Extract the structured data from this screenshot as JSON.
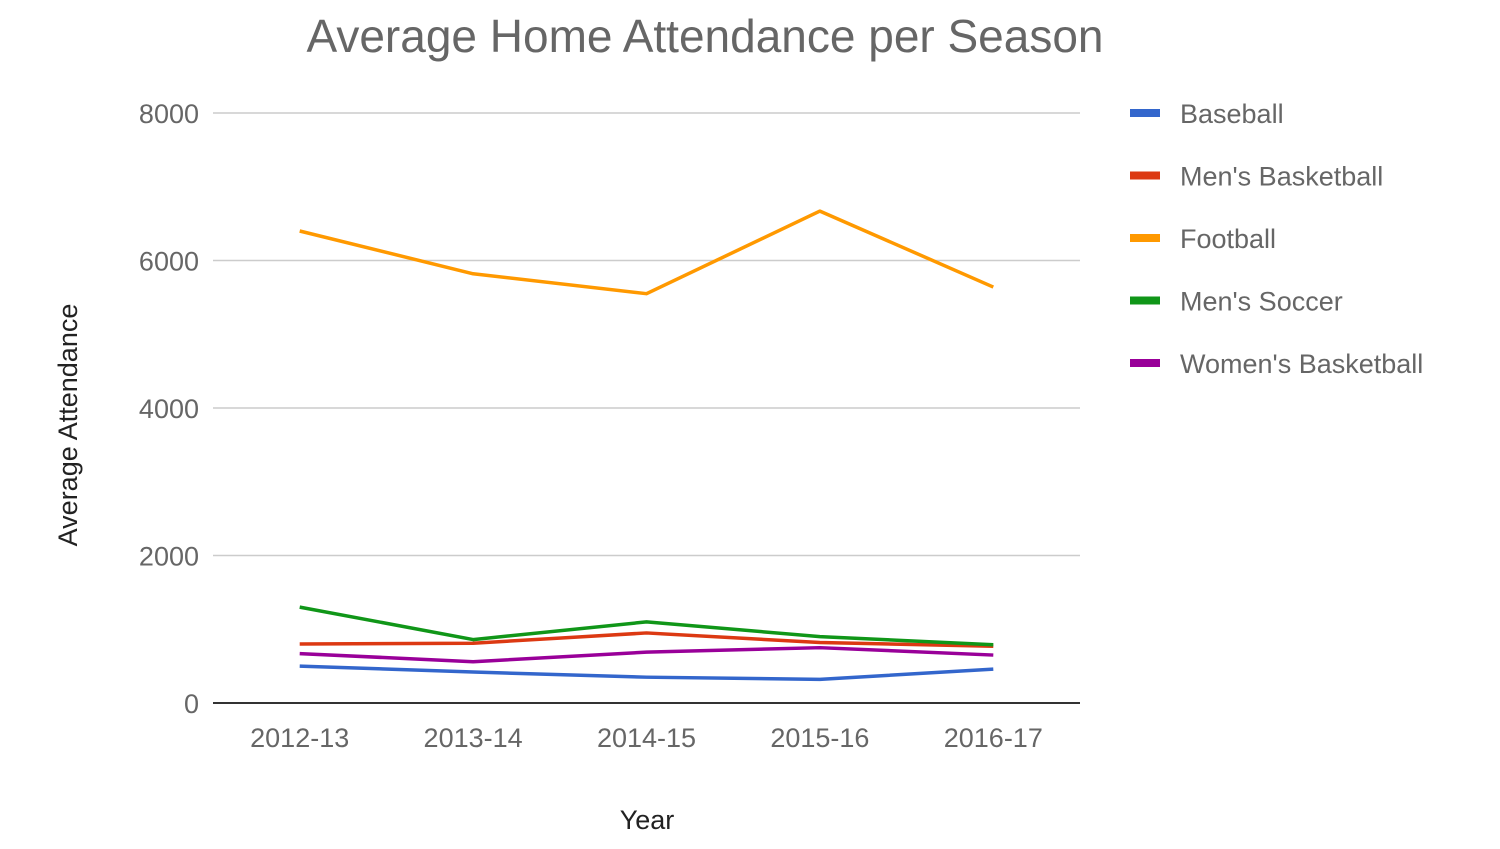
{
  "chart_data": {
    "type": "line",
    "title": "Average Home Attendance per Season",
    "xlabel": "Year",
    "ylabel": "Average Attendance",
    "categories": [
      "2012-13",
      "2013-14",
      "2014-15",
      "2015-16",
      "2016-17"
    ],
    "ylim": [
      0,
      8000
    ],
    "yticks": [
      0,
      2000,
      4000,
      6000,
      8000
    ],
    "grid": true,
    "legend_position": "right",
    "series": [
      {
        "name": "Baseball",
        "color": "#3366cc",
        "values": [
          500,
          420,
          350,
          320,
          460
        ]
      },
      {
        "name": "Men's Basketball",
        "color": "#dc3912",
        "values": [
          800,
          810,
          950,
          820,
          770
        ]
      },
      {
        "name": "Football",
        "color": "#ff9900",
        "values": [
          6400,
          5820,
          5550,
          6670,
          5640
        ]
      },
      {
        "name": "Men's Soccer",
        "color": "#109618",
        "values": [
          1300,
          860,
          1100,
          900,
          790
        ]
      },
      {
        "name": "Women's Basketball",
        "color": "#990099",
        "values": [
          670,
          560,
          690,
          750,
          650
        ]
      }
    ]
  }
}
